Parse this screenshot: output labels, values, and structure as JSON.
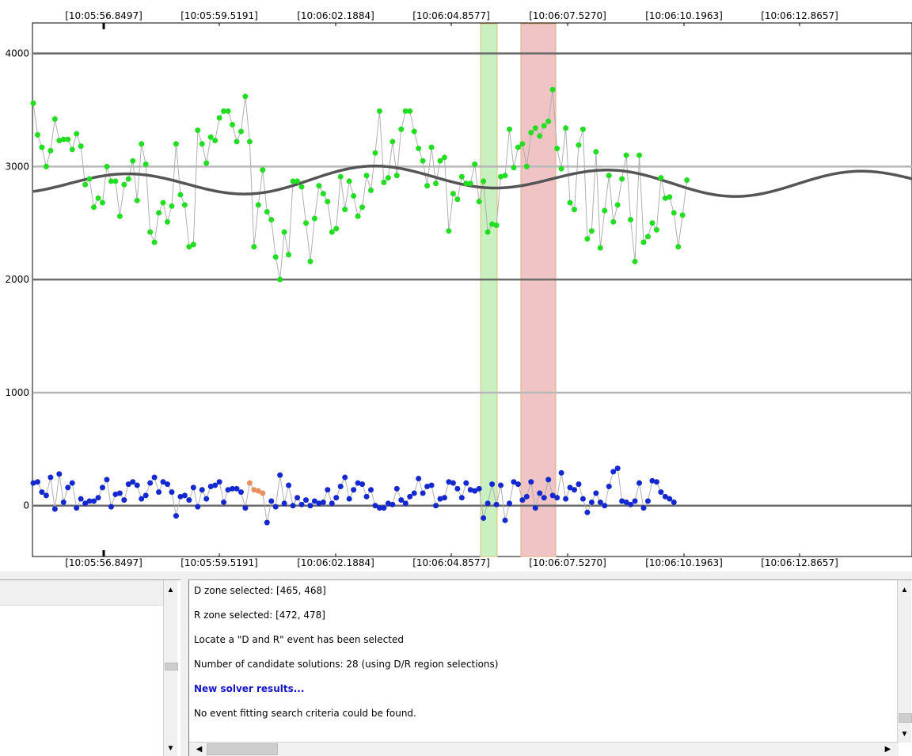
{
  "chart_data": {
    "type": "scatter",
    "x_tick_labels": [
      "[10:05:56.8497]",
      "[10:05:59.5191]",
      "[10:06:02.1884]",
      "[10:06:04.8577]",
      "[10:06:07.5270]",
      "[10:06:10.1963]",
      "[10:06:12.8657]"
    ],
    "yticks": [
      0,
      1000,
      2000,
      3000,
      4000
    ],
    "ylim": [
      -450,
      4270
    ],
    "x_range_points": [
      0,
      203
    ],
    "grid": true,
    "highlight_zones": [
      {
        "name": "D zone",
        "range": [
          465,
          468
        ],
        "color": "#c8f0c0",
        "edge": "#e0c080"
      },
      {
        "name": "R zone",
        "range": [
          472,
          478
        ],
        "color": "#f0c4c4",
        "edge": "#e0b080"
      }
    ],
    "series": [
      {
        "color": "#22dd22",
        "values": [
          3560,
          3280,
          3170,
          3000,
          3140,
          3420,
          3230,
          3240,
          3240,
          3150,
          3290,
          3180,
          2840,
          2890,
          2640,
          2720,
          2680,
          3000,
          2870,
          2870,
          2560,
          2840,
          2890,
          3050,
          2700,
          3200,
          3020,
          2420,
          2330,
          2590,
          2680,
          2510,
          2650,
          3200,
          2750,
          2660,
          2290,
          2310,
          3320,
          3200,
          3030,
          3260,
          3230,
          3430,
          3490,
          3490,
          3370,
          3220,
          3310,
          3620,
          3220,
          2290,
          2660,
          2970,
          2600,
          2530,
          2200,
          2000,
          2420,
          2220,
          2870,
          2870,
          2820,
          2500,
          2160,
          2540,
          2830,
          2760,
          2690,
          2420,
          2450,
          2910,
          2620,
          2870,
          2740,
          2560,
          2640,
          2920,
          2790,
          3120,
          3490,
          2860,
          2900,
          3220,
          2920,
          3330,
          3490,
          3490,
          3310,
          3160,
          3050,
          2830,
          3170,
          2850,
          3050,
          3080,
          2430,
          2760,
          2710,
          2910,
          2850,
          2850,
          3020,
          2690,
          2870,
          2420,
          2490,
          2480,
          2910,
          2920,
          3330,
          2990,
          3170,
          3200,
          3000,
          3300,
          3340,
          3270,
          3360,
          3400,
          3680,
          3160,
          2980,
          3340,
          2680,
          2620,
          3190,
          3330,
          2360,
          2430,
          3130,
          2280,
          2610,
          2920,
          2510,
          2660,
          2890,
          3100,
          2530,
          2160,
          3100,
          2330,
          2380,
          2500,
          2440,
          2900,
          2720,
          2730,
          2590,
          2290,
          2570,
          2880
        ],
        "x_step": 1,
        "point_radius": 3.5
      },
      {
        "color": "#1428d0",
        "values": [
          200,
          210,
          120,
          90,
          250,
          -30,
          280,
          30,
          160,
          200,
          -20,
          60,
          20,
          40,
          40,
          70,
          160,
          230,
          -10,
          100,
          110,
          50,
          190,
          210,
          180,
          60,
          90,
          200,
          250,
          120,
          210,
          190,
          120,
          -90,
          80,
          90,
          50,
          160,
          -10,
          140,
          60,
          170,
          180,
          210,
          30,
          140,
          150,
          150,
          120,
          -20,
          200,
          140,
          130,
          110,
          -150,
          40,
          -10,
          270,
          20,
          180,
          0,
          70,
          10,
          50,
          0,
          40,
          20,
          30,
          140,
          20,
          70,
          170,
          250,
          60,
          140,
          200,
          190,
          80,
          140,
          0,
          -20,
          -20,
          20,
          10,
          150,
          50,
          20,
          80,
          110,
          240,
          110,
          170,
          180,
          0,
          60,
          70,
          210,
          200,
          150,
          70,
          200,
          140,
          130,
          150,
          -110,
          20,
          190,
          10,
          180,
          -130,
          20,
          210,
          190,
          50,
          80,
          210,
          -20,
          110,
          70,
          230,
          90,
          70,
          290,
          60,
          160,
          140,
          190,
          60,
          -60,
          30,
          110,
          30,
          0,
          170,
          300,
          330,
          40,
          30,
          10,
          40,
          200,
          -20,
          40,
          220,
          210,
          120,
          80,
          60,
          30
        ],
        "highlight_index_range": [
          50,
          53
        ],
        "highlight_color": "#e89060",
        "point_radius": 3.5
      }
    ],
    "fit_curve": {
      "color": "#555555",
      "mean": 2875,
      "components": [
        {
          "amplitude": 100,
          "period_points": 56,
          "phase_points": 8
        },
        {
          "amplitude": 40,
          "period_points": 140,
          "phase_points": 60
        }
      ]
    }
  },
  "log": {
    "lines": [
      "D zone selected: [465, 468]",
      "R zone selected: [472, 478]",
      "Locate a \"D and R\" event has been selected",
      "Number of candidate solutions: 28 (using D/R region selections)",
      "New solver results...",
      "No event fitting search criteria could be found."
    ]
  },
  "scroll_icons": {
    "up": "▲",
    "down": "▼",
    "left": "◀",
    "right": "▶"
  }
}
